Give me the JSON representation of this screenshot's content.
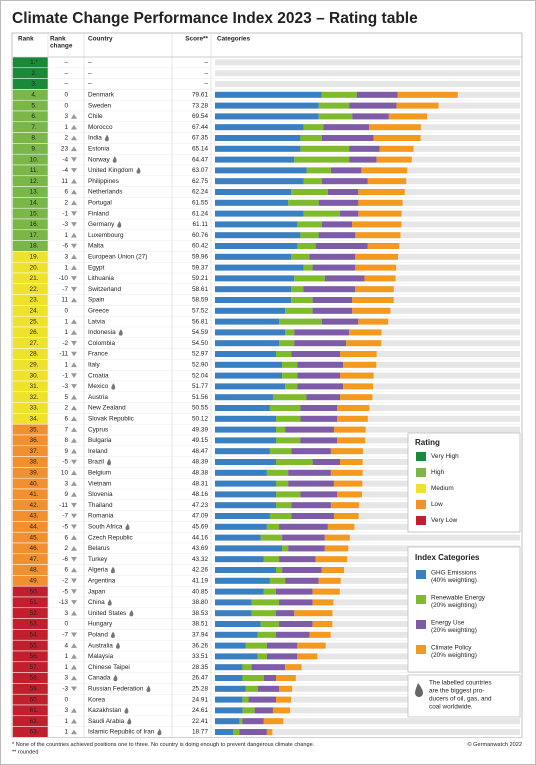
{
  "title": "Climate Change Performance Index 2023 – Rating table",
  "columns": [
    [
      "Rank"
    ],
    [
      "Rank",
      "change"
    ],
    [
      "Country"
    ],
    [
      "Score**"
    ],
    [
      "Categories"
    ]
  ],
  "rating_legend": {
    "title": "Rating",
    "items": [
      {
        "label": "Very High",
        "color": "#1a8a3a"
      },
      {
        "label": "High",
        "color": "#7ab648"
      },
      {
        "label": "Medium",
        "color": "#efe22b"
      },
      {
        "label": "Low",
        "color": "#f0902f"
      },
      {
        "label": "Very Low",
        "color": "#c21f2e"
      }
    ]
  },
  "category_legend": {
    "title": "Index Categories",
    "items": [
      {
        "name": "GHG Emissions",
        "weight": "(40% weighting)",
        "color": "#3a7fc1"
      },
      {
        "name": "Renewable Energy",
        "weight": "(20% weighting)",
        "color": "#7fba2a"
      },
      {
        "name": "Energy Use",
        "weight": "(20% weighting)",
        "color": "#7d5ba6"
      },
      {
        "name": "Climate Policy",
        "weight": "(20% weighting)",
        "color": "#f39a1e"
      }
    ]
  },
  "bar_max": 100,
  "note": [
    "The labelled countries",
    "are the biggest pro-",
    "ducers of oil, gas, and",
    "coal worldwide."
  ],
  "footnotes": [
    "* None of the countries achieved positions one to three. No country is doing enough to prevent dangerous climate change.",
    "** rounded"
  ],
  "credit": "© Germanwatch 2022",
  "rows": [
    {
      "rank": "1.*",
      "change": "–",
      "country": "–",
      "score": "–",
      "rating": 0,
      "producer": false,
      "segments": []
    },
    {
      "rank": "2.",
      "change": "–",
      "country": "–",
      "score": "–",
      "rating": 0,
      "producer": false,
      "segments": []
    },
    {
      "rank": "3.",
      "change": "–",
      "country": "–",
      "score": "–",
      "rating": 0,
      "producer": false,
      "segments": []
    },
    {
      "rank": "4.",
      "change": "0",
      "country": "Denmark",
      "score": "79.61",
      "rating": 1,
      "producer": false,
      "segments": [
        35,
        11.5,
        13.4,
        19.7
      ]
    },
    {
      "rank": "5.",
      "change": "0",
      "country": "Sweden",
      "score": "73.28",
      "rating": 1,
      "producer": false,
      "segments": [
        34,
        10,
        15.5,
        13.8
      ]
    },
    {
      "rank": "6.",
      "change": "3",
      "country": "Chile",
      "score": "69.54",
      "rating": 1,
      "producer": false,
      "segments": [
        34,
        11,
        12,
        12.5
      ]
    },
    {
      "rank": "7.",
      "change": "1",
      "country": "Morocco",
      "score": "67.44",
      "rating": 1,
      "producer": false,
      "segments": [
        29,
        6.5,
        15,
        17
      ]
    },
    {
      "rank": "8.",
      "change": "2",
      "country": "India",
      "score": "67.35",
      "rating": 1,
      "producer": true,
      "segments": [
        28,
        7,
        17,
        15.4
      ]
    },
    {
      "rank": "9.",
      "change": "23",
      "country": "Estonia",
      "score": "65.14",
      "rating": 1,
      "producer": false,
      "segments": [
        28,
        16,
        10,
        11.1
      ]
    },
    {
      "rank": "10.",
      "change": "-4",
      "country": "Norway",
      "score": "64.47",
      "rating": 1,
      "producer": true,
      "segments": [
        26,
        18,
        9,
        11.5
      ]
    },
    {
      "rank": "11.",
      "change": "-4",
      "country": "United Kingdom",
      "score": "63.07",
      "rating": 1,
      "producer": true,
      "segments": [
        30,
        8,
        10,
        15
      ]
    },
    {
      "rank": "12.",
      "change": "11",
      "country": "Philippines",
      "score": "62.75",
      "rating": 1,
      "producer": false,
      "segments": [
        29,
        6,
        15,
        12.7
      ]
    },
    {
      "rank": "13.",
      "change": "6",
      "country": "Netherlands",
      "score": "62.24",
      "rating": 1,
      "producer": false,
      "segments": [
        25,
        12,
        10,
        15.2
      ]
    },
    {
      "rank": "14.",
      "change": "2",
      "country": "Portugal",
      "score": "61.55",
      "rating": 1,
      "producer": false,
      "segments": [
        24,
        10,
        13,
        14.5
      ]
    },
    {
      "rank": "15.",
      "change": "-1",
      "country": "Finland",
      "score": "61.24",
      "rating": 1,
      "producer": false,
      "segments": [
        29,
        12,
        6,
        14.2
      ]
    },
    {
      "rank": "16.",
      "change": "-3",
      "country": "Germany",
      "score": "61.11",
      "rating": 1,
      "producer": true,
      "segments": [
        27,
        8,
        10,
        16.1
      ]
    },
    {
      "rank": "17.",
      "change": "1",
      "country": "Luxembourg",
      "score": "60.76",
      "rating": 1,
      "producer": false,
      "segments": [
        28,
        6,
        12,
        14.8
      ]
    },
    {
      "rank": "18.",
      "change": "-6",
      "country": "Malta",
      "score": "60.42",
      "rating": 1,
      "producer": false,
      "segments": [
        27,
        6,
        17,
        10.4
      ]
    },
    {
      "rank": "19.",
      "change": "3",
      "country": "European Union (27)",
      "score": "59.96",
      "rating": 2,
      "producer": false,
      "segments": [
        25,
        6,
        15,
        14
      ]
    },
    {
      "rank": "20.",
      "change": "1",
      "country": "Egypt",
      "score": "59.37",
      "rating": 2,
      "producer": false,
      "segments": [
        29,
        3,
        14,
        13.4
      ]
    },
    {
      "rank": "21.",
      "change": "-10",
      "country": "Lithuania",
      "score": "59.21",
      "rating": 2,
      "producer": false,
      "segments": [
        26,
        10,
        13,
        10.2
      ]
    },
    {
      "rank": "22.",
      "change": "-7",
      "country": "Switzerland",
      "score": "58.61",
      "rating": 2,
      "producer": false,
      "segments": [
        25,
        4,
        17,
        12.6
      ]
    },
    {
      "rank": "23.",
      "change": "11",
      "country": "Spain",
      "score": "58.59",
      "rating": 2,
      "producer": false,
      "segments": [
        25,
        7,
        13,
        13.6
      ]
    },
    {
      "rank": "24.",
      "change": "0",
      "country": "Greece",
      "score": "57.52",
      "rating": 2,
      "producer": false,
      "segments": [
        23,
        9,
        13,
        12.5
      ]
    },
    {
      "rank": "25.",
      "change": "1",
      "country": "Latvia",
      "score": "56.81",
      "rating": 2,
      "producer": false,
      "segments": [
        21,
        14,
        12,
        9.8
      ]
    },
    {
      "rank": "26.",
      "change": "1",
      "country": "Indonesia",
      "score": "54.59",
      "rating": 2,
      "producer": true,
      "segments": [
        23,
        3,
        18,
        10.6
      ]
    },
    {
      "rank": "27.",
      "change": "-2",
      "country": "Colombia",
      "score": "54.50",
      "rating": 2,
      "producer": false,
      "segments": [
        21,
        5,
        17,
        11.5
      ]
    },
    {
      "rank": "28.",
      "change": "-11",
      "country": "France",
      "score": "52.97",
      "rating": 2,
      "producer": false,
      "segments": [
        20,
        5,
        16,
        12
      ]
    },
    {
      "rank": "29.",
      "change": "1",
      "country": "Italy",
      "score": "52.90",
      "rating": 2,
      "producer": false,
      "segments": [
        22,
        5,
        15,
        10.9
      ]
    },
    {
      "rank": "30.",
      "change": "-1",
      "country": "Croatia",
      "score": "52.04",
      "rating": 2,
      "producer": false,
      "segments": [
        22,
        5,
        14,
        11
      ]
    },
    {
      "rank": "31.",
      "change": "-3",
      "country": "Mexico",
      "score": "51.77",
      "rating": 2,
      "producer": true,
      "segments": [
        23,
        4,
        15,
        9.8
      ]
    },
    {
      "rank": "32.",
      "change": "5",
      "country": "Austria",
      "score": "51.56",
      "rating": 2,
      "producer": false,
      "segments": [
        19,
        11,
        11,
        10.6
      ]
    },
    {
      "rank": "33.",
      "change": "2",
      "country": "New Zealand",
      "score": "50.55",
      "rating": 2,
      "producer": false,
      "segments": [
        18,
        10,
        12,
        10.6
      ]
    },
    {
      "rank": "34.",
      "change": "6",
      "country": "Slovak Republic",
      "score": "50.12",
      "rating": 2,
      "producer": false,
      "segments": [
        20,
        8,
        12,
        10.1
      ]
    },
    {
      "rank": "35.",
      "change": "7",
      "country": "Cyprus",
      "score": "49.39",
      "rating": 3,
      "producer": false,
      "segments": [
        20,
        3,
        16,
        10.4
      ]
    },
    {
      "rank": "36.",
      "change": "8",
      "country": "Bulgaria",
      "score": "49.15",
      "rating": 3,
      "producer": false,
      "segments": [
        20,
        8,
        12,
        9.2
      ]
    },
    {
      "rank": "37.",
      "change": "9",
      "country": "Ireland",
      "score": "48.47",
      "rating": 3,
      "producer": false,
      "segments": [
        18,
        7,
        13,
        10.5
      ]
    },
    {
      "rank": "38.",
      "change": "-5",
      "country": "Brazil",
      "score": "48.39",
      "rating": 3,
      "producer": true,
      "segments": [
        20,
        12,
        9,
        7.4
      ]
    },
    {
      "rank": "39.",
      "change": "10",
      "country": "Belgium",
      "score": "48.38",
      "rating": 3,
      "producer": false,
      "segments": [
        17,
        7,
        14,
        10.4
      ]
    },
    {
      "rank": "40.",
      "change": "3",
      "country": "Vietnam",
      "score": "48.31",
      "rating": 3,
      "producer": false,
      "segments": [
        20,
        4,
        15,
        9.3
      ]
    },
    {
      "rank": "41.",
      "change": "9",
      "country": "Slovenia",
      "score": "48.16",
      "rating": 3,
      "producer": false,
      "segments": [
        20,
        8,
        12,
        8.2
      ]
    },
    {
      "rank": "42.",
      "change": "-11",
      "country": "Thailand",
      "score": "47.23",
      "rating": 3,
      "producer": false,
      "segments": [
        20,
        5,
        13,
        9.2
      ]
    },
    {
      "rank": "43.",
      "change": "-7",
      "country": "Romania",
      "score": "47.09",
      "rating": 3,
      "producer": false,
      "segments": [
        18,
        7,
        14,
        8.1
      ]
    },
    {
      "rank": "44.",
      "change": "-5",
      "country": "South Africa",
      "score": "45.69",
      "rating": 3,
      "producer": true,
      "segments": [
        17,
        4,
        16,
        8.7
      ]
    },
    {
      "rank": "45.",
      "change": "6",
      "country": "Czech Republic",
      "score": "44.16",
      "rating": 3,
      "producer": false,
      "segments": [
        15,
        7,
        14,
        8.2
      ]
    },
    {
      "rank": "46.",
      "change": "2",
      "country": "Belarus",
      "score": "43.69",
      "rating": 3,
      "producer": false,
      "segments": [
        22,
        2,
        12,
        7.7
      ]
    },
    {
      "rank": "47.",
      "change": "-6",
      "country": "Turkey",
      "score": "43.32",
      "rating": 3,
      "producer": false,
      "segments": [
        16,
        5,
        12,
        10.3
      ]
    },
    {
      "rank": "48.",
      "change": "6",
      "country": "Algeria",
      "score": "42.26",
      "rating": 3,
      "producer": true,
      "segments": [
        20,
        2,
        13,
        7.3
      ]
    },
    {
      "rank": "49.",
      "change": "-2",
      "country": "Argentina",
      "score": "41.19",
      "rating": 3,
      "producer": false,
      "segments": [
        18,
        5,
        11,
        7.2
      ]
    },
    {
      "rank": "50.",
      "change": "-5",
      "country": "Japan",
      "score": "40.85",
      "rating": 4,
      "producer": false,
      "segments": [
        16,
        4,
        12,
        8.9
      ]
    },
    {
      "rank": "51.",
      "change": "-13",
      "country": "China",
      "score": "38.80",
      "rating": 4,
      "producer": true,
      "segments": [
        12,
        9,
        11,
        6.8
      ]
    },
    {
      "rank": "52.",
      "change": "3",
      "country": "United States",
      "score": "38.53",
      "rating": 4,
      "producer": true,
      "segments": [
        12,
        8,
        6,
        12.5
      ]
    },
    {
      "rank": "53.",
      "change": "0",
      "country": "Hungary",
      "score": "38.51",
      "rating": 4,
      "producer": false,
      "segments": [
        15,
        6,
        11,
        6.5
      ]
    },
    {
      "rank": "54.",
      "change": "-7",
      "country": "Poland",
      "score": "37.94",
      "rating": 4,
      "producer": true,
      "segments": [
        14,
        6,
        11,
        6.9
      ]
    },
    {
      "rank": "55.",
      "change": "4",
      "country": "Australia",
      "score": "36.26",
      "rating": 4,
      "producer": true,
      "segments": [
        10,
        7,
        10,
        9.3
      ]
    },
    {
      "rank": "56.",
      "change": "1",
      "country": "Malaysia",
      "score": "33.51",
      "rating": 4,
      "producer": false,
      "segments": [
        14,
        3,
        10,
        6.5
      ]
    },
    {
      "rank": "57.",
      "change": "1",
      "country": "Chinese Taipei",
      "score": "28.35",
      "rating": 4,
      "producer": false,
      "segments": [
        9,
        3,
        11,
        5.4
      ]
    },
    {
      "rank": "58.",
      "change": "3",
      "country": "Canada",
      "score": "26.47",
      "rating": 4,
      "producer": true,
      "segments": [
        9,
        7,
        4,
        6.5
      ]
    },
    {
      "rank": "59.",
      "change": "-3",
      "country": "Russian Federation",
      "score": "25.28",
      "rating": 4,
      "producer": true,
      "segments": [
        10,
        4,
        7,
        4.3
      ]
    },
    {
      "rank": "60.",
      "change": "0",
      "country": "Korea",
      "score": "24.91",
      "rating": 4,
      "producer": false,
      "segments": [
        9,
        2,
        9,
        4.9
      ]
    },
    {
      "rank": "61.",
      "change": "3",
      "country": "Kazakhstan",
      "score": "24.61",
      "rating": 4,
      "producer": true,
      "segments": [
        9,
        4,
        6,
        5.6
      ]
    },
    {
      "rank": "62.",
      "change": "1",
      "country": "Saudi Arabia",
      "score": "22.41",
      "rating": 4,
      "producer": true,
      "segments": [
        8,
        1,
        7,
        6.4
      ]
    },
    {
      "rank": "63.",
      "change": "1",
      "country": "Islamic Republic of Iran",
      "score": "18.77",
      "rating": 4,
      "producer": true,
      "segments": [
        6,
        2,
        9,
        1.8
      ]
    }
  ]
}
